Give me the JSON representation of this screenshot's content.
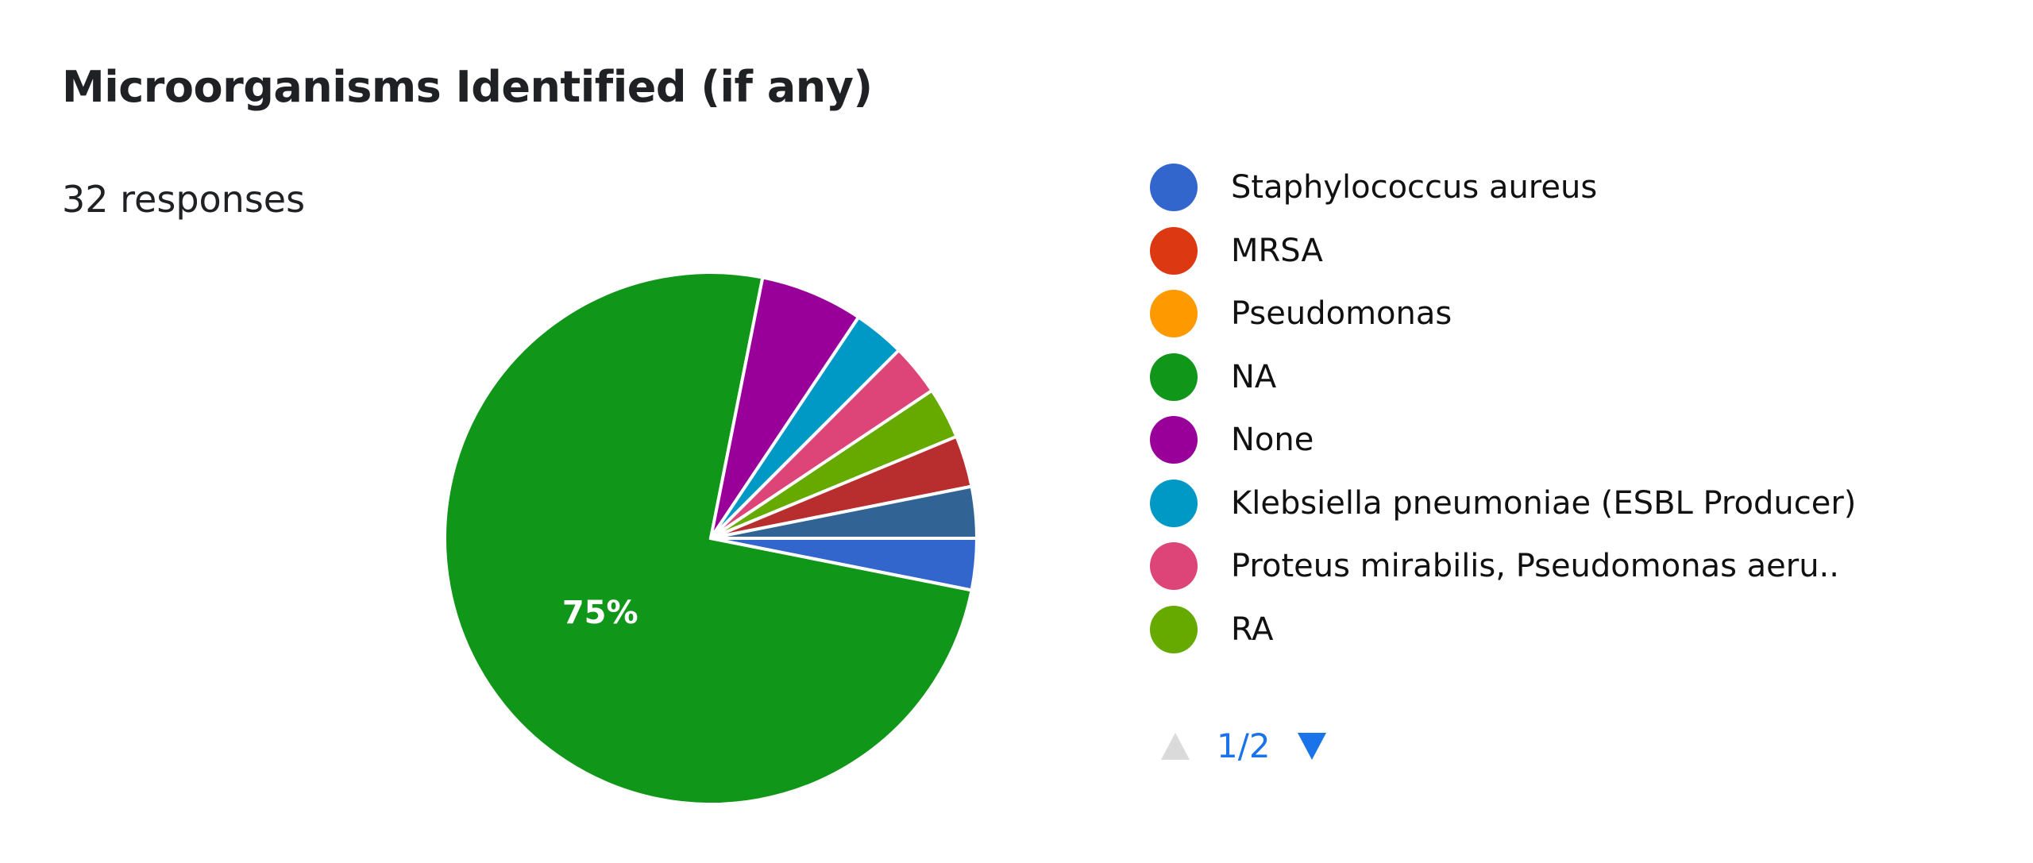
{
  "header": {
    "title": "Microorganisms Identified (if any)",
    "responses": "32 responses"
  },
  "chart_data": {
    "type": "pie",
    "title": "Microorganisms Identified (if any)",
    "total_responses": 32,
    "slices": [
      {
        "name": "Staphylococcus aureus",
        "value": 1,
        "color": "#3366cc"
      },
      {
        "name": "MRSA",
        "value": 0,
        "color": "#dc3912"
      },
      {
        "name": "Pseudomonas",
        "value": 0,
        "color": "#ff9900"
      },
      {
        "name": "NA",
        "value": 24,
        "color": "#109618",
        "label": "75%"
      },
      {
        "name": "None",
        "value": 2,
        "color": "#990099"
      },
      {
        "name": "Klebsiella pneumoniae (ESBL Producer)",
        "value": 1,
        "color": "#0099c6"
      },
      {
        "name": "Proteus mirabilis, Pseudomonas aeru..",
        "value": 1,
        "color": "#dd4477"
      },
      {
        "name": "RA",
        "value": 1,
        "color": "#66aa00"
      },
      {
        "name": "",
        "value": 1,
        "color": "#b82e2e"
      },
      {
        "name": "",
        "value": 1,
        "color": "#316395"
      }
    ],
    "legend_placement": "right"
  },
  "legend": {
    "items": [
      {
        "label": "Staphylococcus aureus",
        "color": "#3366cc"
      },
      {
        "label": "MRSA",
        "color": "#dc3912"
      },
      {
        "label": "Pseudomonas",
        "color": "#ff9900"
      },
      {
        "label": "NA",
        "color": "#109618"
      },
      {
        "label": "None",
        "color": "#990099"
      },
      {
        "label": "Klebsiella pneumoniae (ESBL Producer)",
        "color": "#0099c6"
      },
      {
        "label": "Proteus mirabilis, Pseudomonas aeru..",
        "color": "#dd4477"
      },
      {
        "label": "RA",
        "color": "#66aa00"
      }
    ],
    "pager": {
      "text": "1/2",
      "prev_icon": "triangle-up-icon",
      "next_icon": "triangle-down-icon"
    }
  }
}
